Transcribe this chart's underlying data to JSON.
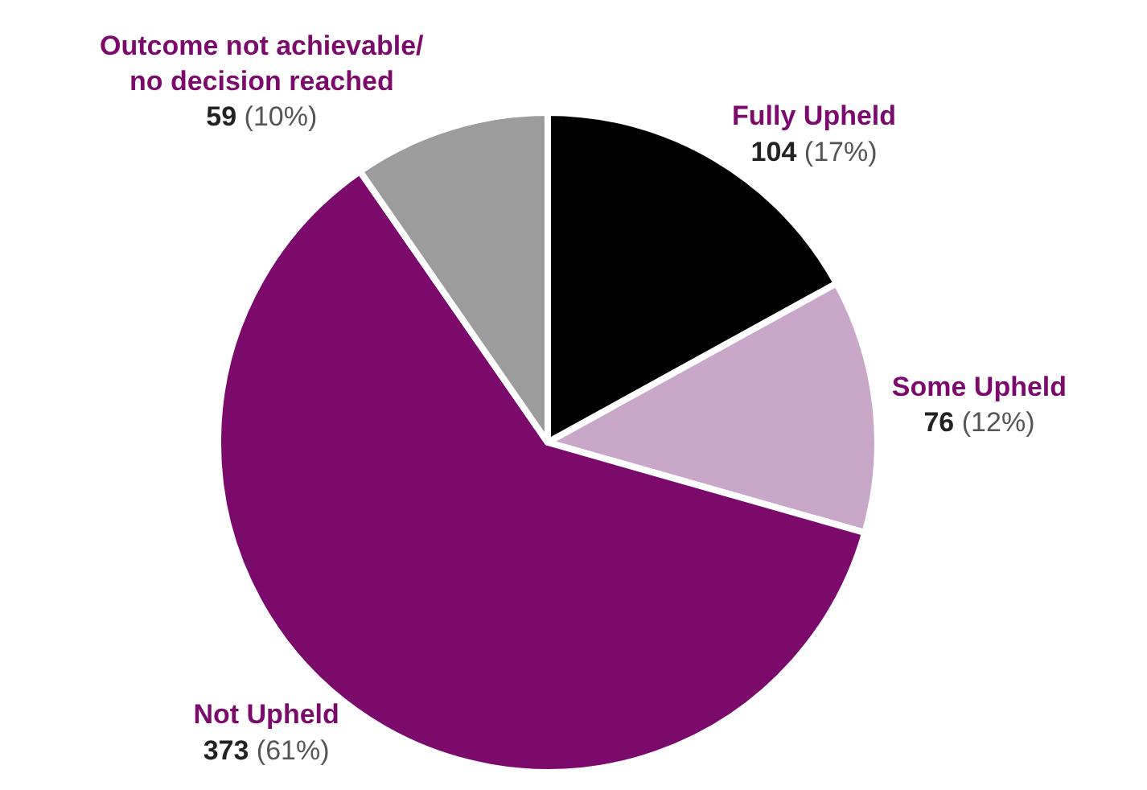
{
  "chart_data": {
    "type": "pie",
    "categories": [
      "Fully Upheld",
      "Some Upheld",
      "Not Upheld",
      "Outcome not achievable/ no decision reached"
    ],
    "values": [
      104,
      76,
      373,
      59
    ],
    "value_labels": [
      "104 (17%)",
      "76 (12%)",
      "373 (61%)",
      "59 (10%)"
    ],
    "colors": [
      "#000000",
      "#c9a7c9",
      "#7b0a6c",
      "#9c9c9c"
    ],
    "legend": false
  }
}
